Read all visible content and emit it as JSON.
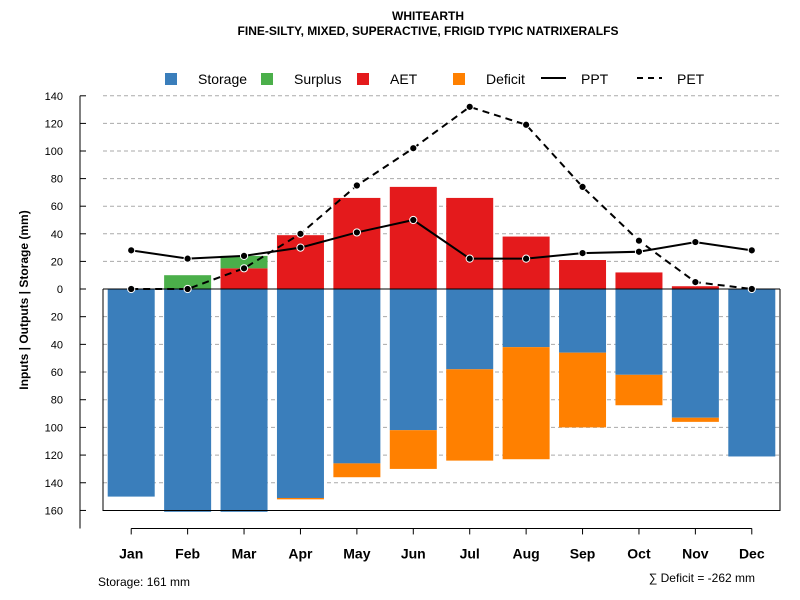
{
  "chart_data": {
    "type": "bar",
    "title": "WHITEARTH",
    "subtitle": "FINE-SILTY, MIXED, SUPERACTIVE, FRIGID TYPIC NATRIXERALFS",
    "ylabel": "Inputs | Outputs | Storage    (mm)",
    "categories": [
      "Jan",
      "Feb",
      "Mar",
      "Apr",
      "May",
      "Jun",
      "Jul",
      "Aug",
      "Sep",
      "Oct",
      "Nov",
      "Dec"
    ],
    "ylim_up": [
      0,
      140
    ],
    "ylim_down": [
      0,
      160
    ],
    "y_ticks_up": [
      "140",
      "120",
      "100",
      "80",
      "60",
      "40",
      "20",
      "0"
    ],
    "y_ticks_down": [
      "20",
      "40",
      "60",
      "80",
      "100",
      "120",
      "140",
      "160"
    ],
    "legend": [
      {
        "label": "Storage",
        "kind": "box",
        "color": "#3A7EBB"
      },
      {
        "label": "Surplus",
        "kind": "box",
        "color": "#4BAF4A"
      },
      {
        "label": "AET",
        "kind": "box",
        "color": "#E41A1C"
      },
      {
        "label": "Deficit",
        "kind": "box",
        "color": "#FF8000"
      },
      {
        "label": "PPT",
        "kind": "solid",
        "color": "#000000"
      },
      {
        "label": "PET",
        "kind": "dashed",
        "color": "#000000"
      }
    ],
    "series": [
      {
        "name": "AET",
        "values": [
          0,
          0,
          15,
          39,
          66,
          74,
          66,
          38,
          21,
          12,
          2,
          0
        ]
      },
      {
        "name": "Surplus",
        "values": [
          0,
          10,
          9,
          0,
          0,
          0,
          0,
          0,
          0,
          0,
          0,
          0
        ]
      },
      {
        "name": "Storage",
        "values": [
          150,
          161,
          161,
          151,
          126,
          102,
          58,
          42,
          46,
          62,
          93,
          121
        ]
      },
      {
        "name": "Deficit",
        "values": [
          0,
          0,
          0,
          1,
          10,
          28,
          66,
          81,
          54,
          22,
          3,
          0
        ]
      },
      {
        "name": "PPT",
        "values": [
          28,
          22,
          24,
          30,
          41,
          50,
          22,
          22,
          26,
          27,
          34,
          28
        ]
      },
      {
        "name": "PET",
        "values": [
          0,
          0,
          15,
          40,
          75,
          102,
          132,
          119,
          74,
          35,
          5,
          0
        ]
      }
    ],
    "colors": {
      "storage": "#3A7EBB",
      "surplus": "#4BAF4A",
      "aet": "#E41A1C",
      "deficit": "#FF8000",
      "grid": "#AAAAAA"
    }
  },
  "footer": {
    "storage": "Storage: 161 mm",
    "deficit": "∑ Deficit = -262 mm"
  }
}
